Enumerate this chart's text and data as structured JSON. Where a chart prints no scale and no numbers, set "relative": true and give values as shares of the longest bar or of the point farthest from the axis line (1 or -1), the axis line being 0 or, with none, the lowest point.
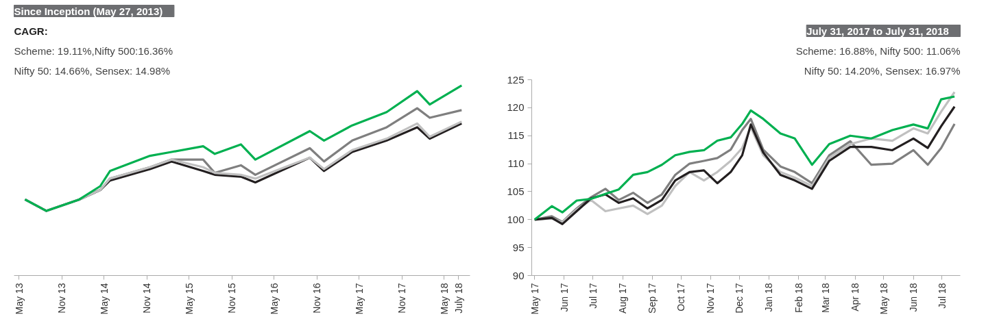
{
  "chart_data": [
    {
      "type": "line",
      "title": "Since Inception (May 27, 2013)",
      "subtitle": "CAGR:",
      "annotations": [
        "Scheme: 19.11%,Nifty 500:16.36%",
        "Nifty 50: 14.66%, Sensex: 14.98%"
      ],
      "relative": true,
      "grid": false,
      "line_style": "solid",
      "marker": "none",
      "x": [
        "2013-05-27",
        "2013-08-27",
        "2014-01-15",
        "2014-04-15",
        "2014-05-27",
        "2014-11-15",
        "2015-02-15",
        "2015-07-01",
        "2015-08-20",
        "2015-12-10",
        "2016-02-10",
        "2016-10-01",
        "2016-12-01",
        "2017-04-01",
        "2017-08-27",
        "2018-01-05",
        "2018-02-28",
        "2018-07-15"
      ],
      "xlim": [
        "2013-04-10",
        "2018-08-20"
      ],
      "xticks": [
        {
          "value": "2013-05",
          "label": "May 13"
        },
        {
          "value": "2013-11",
          "label": "Nov 13"
        },
        {
          "value": "2014-05",
          "label": "May 14"
        },
        {
          "value": "2014-11",
          "label": "Nov 14"
        },
        {
          "value": "2015-05",
          "label": "May 15"
        },
        {
          "value": "2015-11",
          "label": "Nov 15"
        },
        {
          "value": "2016-05",
          "label": "May 16"
        },
        {
          "value": "2016-11",
          "label": "Nov 16"
        },
        {
          "value": "2017-05",
          "label": "May 17"
        },
        {
          "value": "2017-11",
          "label": "Nov 17"
        },
        {
          "value": "2018-05",
          "label": "May 18"
        },
        {
          "value": "2018-07",
          "label": "July 18"
        }
      ],
      "series": [
        {
          "color": "#7f7f7f",
          "values": [
            0.4,
            0.34,
            0.4,
            0.45,
            0.51,
            0.57,
            0.61,
            0.61,
            0.54,
            0.58,
            0.53,
            0.67,
            0.6,
            0.71,
            0.78,
            0.88,
            0.83,
            0.87
          ]
        },
        {
          "color": "#231f20",
          "values": [
            0.4,
            0.34,
            0.4,
            0.45,
            0.5,
            0.56,
            0.6,
            0.55,
            0.53,
            0.52,
            0.49,
            0.62,
            0.55,
            0.65,
            0.71,
            0.78,
            0.72,
            0.8
          ]
        },
        {
          "color": "#c0c0c0",
          "values": [
            0.4,
            0.34,
            0.4,
            0.45,
            0.51,
            0.57,
            0.61,
            0.57,
            0.54,
            0.53,
            0.51,
            0.62,
            0.56,
            0.66,
            0.72,
            0.8,
            0.73,
            0.81
          ]
        },
        {
          "color": "#00b050",
          "values": [
            0.4,
            0.34,
            0.4,
            0.47,
            0.55,
            0.63,
            0.65,
            0.68,
            0.64,
            0.69,
            0.61,
            0.76,
            0.71,
            0.79,
            0.86,
            0.97,
            0.9,
            1.0
          ]
        }
      ]
    },
    {
      "type": "line",
      "title": "July 31, 2017 to July 31, 2018",
      "annotations": [
        "Scheme: 16.88%, Nifty 500: 11.06%",
        "Nifty 50: 14.20%, Sensex: 16.97%"
      ],
      "grid": false,
      "line_style": "solid",
      "marker": "none",
      "x": [
        "2017-05-01",
        "2017-05-19",
        "2017-05-30",
        "2017-06-14",
        "2017-06-29",
        "2017-07-14",
        "2017-07-28",
        "2017-08-12",
        "2017-08-27",
        "2017-09-11",
        "2017-09-25",
        "2017-10-10",
        "2017-10-25",
        "2017-11-08",
        "2017-11-22",
        "2017-12-04",
        "2017-12-13",
        "2017-12-26",
        "2018-01-13",
        "2018-01-28",
        "2018-02-15",
        "2018-03-05",
        "2018-03-27",
        "2018-04-18",
        "2018-05-10",
        "2018-06-01",
        "2018-06-16",
        "2018-06-30",
        "2018-07-14"
      ],
      "xlim": [
        "2017-04-28",
        "2018-07-20"
      ],
      "ylim": [
        90,
        125
      ],
      "yticks": [
        90,
        95,
        100,
        105,
        110,
        115,
        120,
        125
      ],
      "xticks": [
        {
          "value": "2017-05",
          "label": "May 17"
        },
        {
          "value": "2017-06",
          "label": "Jun 17"
        },
        {
          "value": "2017-07",
          "label": "Jul 17"
        },
        {
          "value": "2017-08",
          "label": "Aug 17"
        },
        {
          "value": "2017-09",
          "label": "Sep 17"
        },
        {
          "value": "2017-10",
          "label": "Oct 17"
        },
        {
          "value": "2017-11",
          "label": "Nov 17"
        },
        {
          "value": "2017-12",
          "label": "Dec 17"
        },
        {
          "value": "2018-01",
          "label": "Jan 18"
        },
        {
          "value": "2018-02",
          "label": "Feb 18"
        },
        {
          "value": "2018-03",
          "label": "Mar 18"
        },
        {
          "value": "2018-04",
          "label": "Apr 18"
        },
        {
          "value": "2018-05",
          "label": "May 18"
        },
        {
          "value": "2018-06",
          "label": "Jun 18"
        },
        {
          "value": "2018-07",
          "label": "Jul 18"
        }
      ],
      "series": [
        {
          "color": "#7f7f7f",
          "values": [
            100,
            100.6,
            99.6,
            102,
            104,
            105.5,
            103.5,
            104.8,
            103,
            104.5,
            108,
            110,
            110.5,
            111,
            112.5,
            116,
            118,
            112.5,
            109.5,
            108.5,
            106.5,
            111.5,
            114,
            109.8,
            110,
            112.4,
            109.8,
            112.8,
            117.1
          ]
        },
        {
          "color": "#c0c0c0",
          "values": [
            100,
            100.2,
            99.5,
            101.8,
            103.5,
            101.5,
            102,
            102.5,
            101,
            102.5,
            106,
            108.5,
            107,
            108.5,
            110.5,
            112.8,
            116.5,
            111.5,
            108.5,
            107.5,
            106,
            111,
            113.5,
            114.5,
            114.1,
            116.3,
            115.4,
            119.3,
            122.8
          ]
        },
        {
          "color": "#231f20",
          "values": [
            100,
            100.3,
            99.2,
            101.5,
            103.8,
            104.5,
            103,
            103.8,
            102,
            103.5,
            107,
            108.5,
            108.8,
            106.5,
            108.5,
            111.5,
            117,
            112,
            108,
            107,
            105.5,
            110.5,
            113,
            113,
            112.4,
            114.5,
            112.8,
            116.7,
            120.2
          ]
        },
        {
          "color": "#00b050",
          "values": [
            100,
            102.4,
            101.3,
            103.4,
            103.7,
            104.6,
            105.4,
            108.0,
            108.5,
            109.8,
            111.5,
            112.1,
            112.4,
            114.1,
            114.7,
            117.1,
            119.5,
            118,
            115.4,
            114.5,
            109.8,
            113.5,
            115,
            114.5,
            116,
            117,
            116.3,
            121.5,
            122
          ]
        }
      ]
    }
  ]
}
